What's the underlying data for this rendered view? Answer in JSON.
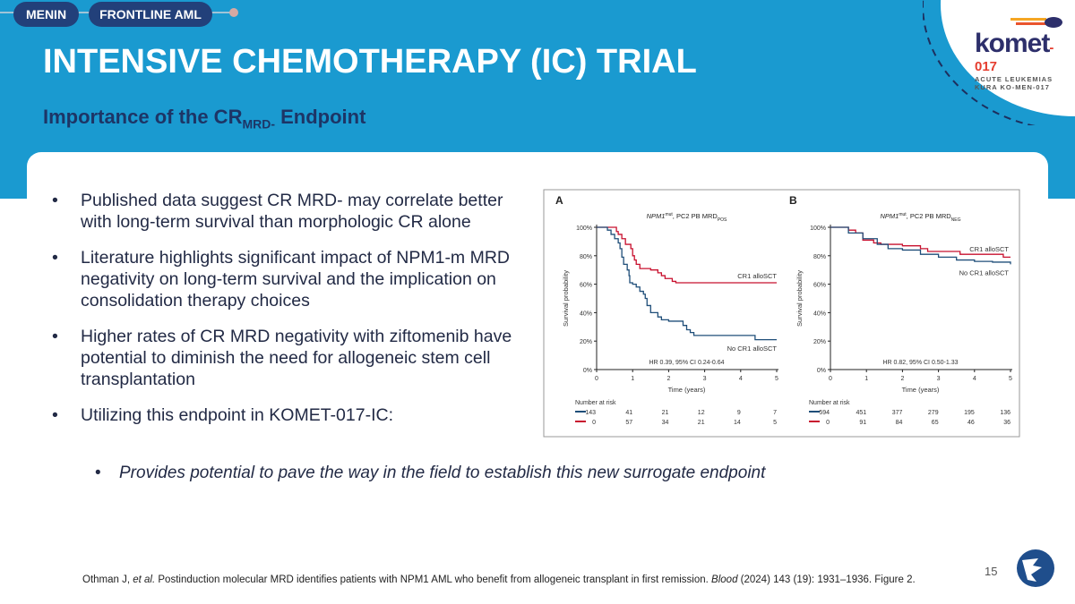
{
  "nav": {
    "pills": [
      "MENIN",
      "FRONTLINE AML"
    ]
  },
  "logo": {
    "name": "komet",
    "suffix": "-017",
    "tag1": "ACUTE LEUKEMIAS",
    "tag2": "KURA KO-MEN-017"
  },
  "title": "INTENSIVE CHEMOTHERAPY (IC) TRIAL",
  "subtitle": {
    "pre": "Importance of the CR",
    "sub": "MRD-",
    "post": " Endpoint"
  },
  "bullets": [
    "Published data suggest CR MRD- may correlate better with long-term survival than morphologic CR alone",
    "Literature highlights significant impact of NPM1-m MRD negativity on long-term survival and the implication on consolidation therapy choices",
    "Higher rates of CR MRD negativity with ziftomenib have potential to diminish the need for allogeneic stem cell transplantation",
    "Utilizing this endpoint in KOMET-017-IC:"
  ],
  "sub_bullet": "Provides potential to pave the way in the field to establish this new surrogate endpoint",
  "page_number": "15",
  "reference": {
    "authors": "Othman J, ",
    "etal": "et al.",
    "text": " Postinduction molecular MRD identifies patients with NPM1 AML who benefit from allogeneic transplant in first remission. ",
    "journal": "Blood",
    "rest": " (2024) 143 (19): 1931–1936. Figure 2."
  },
  "colors": {
    "header": "#1a9ad0",
    "navy": "#22407a",
    "red": "#c8102e",
    "blue": "#1f4e79"
  },
  "chart_data": [
    {
      "type": "line",
      "panel": "A",
      "title": "NPM1mut, PC2 PB MRDPOS",
      "xlabel": "Time (years)",
      "ylabel": "Survival probability",
      "xlim": [
        0,
        5
      ],
      "ylim": [
        0,
        100
      ],
      "xticks": [
        "0",
        "1",
        "2",
        "3",
        "4",
        "5"
      ],
      "yticks": [
        "0%",
        "20%",
        "40%",
        "60%",
        "80%",
        "100%"
      ],
      "annotation": "HR 0.39, 95% CI 0.24-0.64",
      "series": [
        {
          "name": "CR1 alloSCT",
          "color": "#c8102e",
          "points": [
            [
              0,
              100
            ],
            [
              0.5,
              100
            ],
            [
              0.55,
              97
            ],
            [
              0.6,
              95
            ],
            [
              0.7,
              92
            ],
            [
              0.8,
              88
            ],
            [
              0.95,
              85
            ],
            [
              1.0,
              80
            ],
            [
              1.05,
              77
            ],
            [
              1.1,
              74
            ],
            [
              1.2,
              71
            ],
            [
              1.5,
              70
            ],
            [
              1.7,
              68
            ],
            [
              1.8,
              66
            ],
            [
              1.9,
              64
            ],
            [
              2.1,
              62
            ],
            [
              2.2,
              61
            ],
            [
              5,
              61
            ]
          ],
          "at_risk": [
            "0",
            "57",
            "34",
            "21",
            "14",
            "5"
          ]
        },
        {
          "name": "No CR1 alloSCT",
          "color": "#1f4e79",
          "points": [
            [
              0,
              100
            ],
            [
              0.3,
              98
            ],
            [
              0.4,
              95
            ],
            [
              0.5,
              92
            ],
            [
              0.6,
              89
            ],
            [
              0.65,
              85
            ],
            [
              0.7,
              79
            ],
            [
              0.75,
              74
            ],
            [
              0.85,
              70
            ],
            [
              0.9,
              66
            ],
            [
              0.92,
              61
            ],
            [
              1.0,
              60
            ],
            [
              1.1,
              58
            ],
            [
              1.2,
              55
            ],
            [
              1.3,
              53
            ],
            [
              1.35,
              50
            ],
            [
              1.4,
              45
            ],
            [
              1.5,
              40
            ],
            [
              1.7,
              37
            ],
            [
              1.8,
              35
            ],
            [
              2.0,
              34
            ],
            [
              2.4,
              31
            ],
            [
              2.5,
              28
            ],
            [
              2.6,
              26
            ],
            [
              2.7,
              24
            ],
            [
              4.4,
              21
            ],
            [
              5,
              21
            ]
          ],
          "at_risk": [
            "143",
            "41",
            "21",
            "12",
            "9",
            "7"
          ]
        }
      ],
      "at_risk_label": "Number at risk"
    },
    {
      "type": "line",
      "panel": "B",
      "title": "NPM1mut, PC2 PB MRDNEG",
      "xlabel": "Time (years)",
      "ylabel": "Survival probability",
      "xlim": [
        0,
        5
      ],
      "ylim": [
        0,
        100
      ],
      "xticks": [
        "0",
        "1",
        "2",
        "3",
        "4",
        "5"
      ],
      "yticks": [
        "0%",
        "20%",
        "40%",
        "60%",
        "80%",
        "100%"
      ],
      "annotation": "HR 0.82, 95% CI 0.50-1.33",
      "series": [
        {
          "name": "CR1 alloSCT",
          "color": "#c8102e",
          "points": [
            [
              0,
              100
            ],
            [
              0.5,
              98
            ],
            [
              0.7,
              96
            ],
            [
              0.9,
              91
            ],
            [
              1.2,
              89
            ],
            [
              1.4,
              88
            ],
            [
              2.0,
              87
            ],
            [
              2.5,
              85
            ],
            [
              2.7,
              83
            ],
            [
              3.6,
              81
            ],
            [
              4.8,
              79
            ],
            [
              5,
              79
            ]
          ],
          "at_risk": [
            "0",
            "91",
            "84",
            "65",
            "46",
            "36"
          ]
        },
        {
          "name": "No CR1 alloSCT",
          "color": "#1f4e79",
          "points": [
            [
              0,
              100
            ],
            [
              0.5,
              96
            ],
            [
              0.9,
              92
            ],
            [
              1.3,
              88
            ],
            [
              1.6,
              85
            ],
            [
              2,
              84
            ],
            [
              2.5,
              81
            ],
            [
              3,
              79
            ],
            [
              3.5,
              77
            ],
            [
              4,
              76
            ],
            [
              4.5,
              75.5
            ],
            [
              5,
              74
            ]
          ],
          "at_risk": [
            "594",
            "451",
            "377",
            "279",
            "195",
            "136"
          ]
        }
      ],
      "at_risk_label": "Number at risk"
    }
  ]
}
